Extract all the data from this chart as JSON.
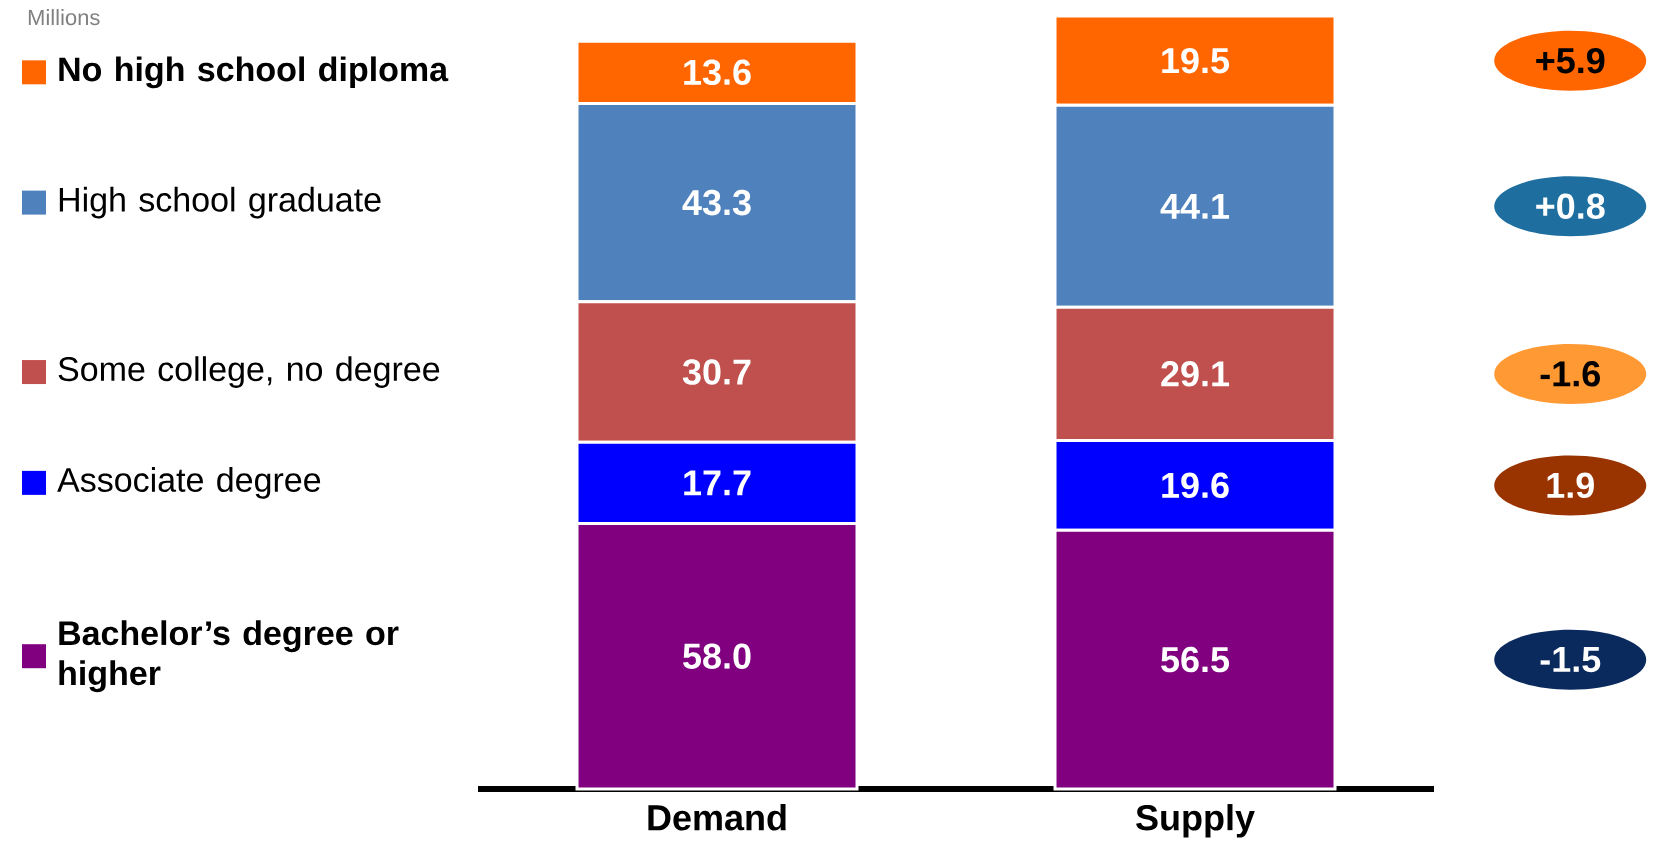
{
  "chart_data": {
    "type": "bar",
    "stacked": true,
    "categories": [
      "Demand",
      "Supply"
    ],
    "series": [
      {
        "name": "Bachelor’s degree or higher",
        "color": "#800080",
        "values": [
          58.0,
          56.5
        ],
        "value_labels": [
          "58.0",
          "56.5"
        ]
      },
      {
        "name": "Associate degree",
        "color": "#0000ff",
        "values": [
          17.7,
          19.6
        ],
        "value_labels": [
          "17.7",
          "19.6"
        ]
      },
      {
        "name": "Some college, no degree",
        "color": "#c0504d",
        "values": [
          30.7,
          29.1
        ],
        "value_labels": [
          "30.7",
          "29.1"
        ]
      },
      {
        "name": "High school graduate",
        "color": "#4f81bd",
        "values": [
          43.3,
          44.1
        ],
        "value_labels": [
          "43.3",
          "44.1"
        ]
      },
      {
        "name": "No high school diploma",
        "color": "#ff6600",
        "values": [
          13.6,
          19.5
        ],
        "value_labels": [
          "13.6",
          "19.5"
        ]
      }
    ],
    "legend": "left",
    "annotations": [
      "Millions",
      "+5.9",
      "+0.8",
      "-1.6",
      "1.9",
      "-1.5"
    ]
  }
}
